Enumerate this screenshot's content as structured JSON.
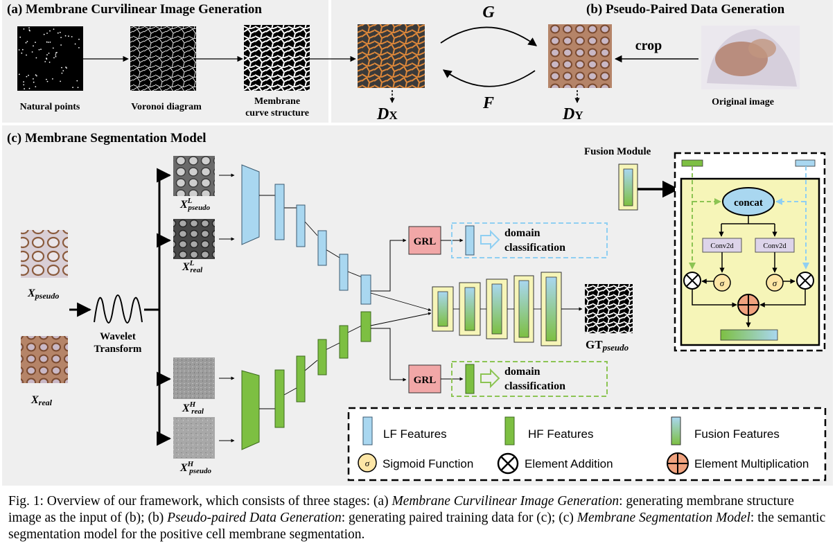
{
  "panel_a": {
    "title": "(a)  Membrane Curvilinear Image Generation",
    "natural_points": "Natural points",
    "voronoi": "Voronoi diagram",
    "membrane_line1": "Membrane",
    "membrane_line2": "curve structure"
  },
  "panel_b": {
    "title": "(b) Pseudo-Paired Data Generation",
    "g_label": "G",
    "f_label": "F",
    "dx_main": "D",
    "dx_sub": "X",
    "dy_main": "D",
    "dy_sub": "Y",
    "crop": "crop",
    "original": "Original image"
  },
  "panel_c": {
    "title": "(c) Membrane Segmentation Model",
    "x_pseudo": "X",
    "x_pseudo_sub": "pseudo",
    "x_real": "X",
    "x_real_sub": "real",
    "wavelet_line1": "Wavelet",
    "wavelet_line2": "Transform",
    "xl_pseudo_main": "X",
    "xl_pseudo_sup": "L",
    "xl_pseudo_sub": "pseudo",
    "xl_real_main": "X",
    "xl_real_sup": "L",
    "xl_real_sub": "real",
    "xh_real_main": "X",
    "xh_real_sup": "H",
    "xh_real_sub": "real",
    "xh_pseudo_main": "X",
    "xh_pseudo_sup": "H",
    "xh_pseudo_sub": "pseudo",
    "grl": "GRL",
    "domain_line1": "domain",
    "domain_line2": "classification",
    "gt_main": "GT",
    "gt_sub": "pseudo",
    "fusion_module": "Fusion Module",
    "concat": "concat",
    "conv2d": "Conv2d",
    "sigma": "σ"
  },
  "legend": {
    "lf": "LF Features",
    "hf": "HF Features",
    "fusion": "Fusion Features",
    "sigmoid": "Sigmoid Function",
    "addition": "Element Addition",
    "multiplication": "Element Multiplication"
  },
  "caption": {
    "p1": "Fig. 1: Overview of our framework, which consists of three stages: (a) ",
    "i1": "Membrane Curvilinear Image Generation",
    "p2": ": generating membrane structure image as the input of (b); (b) ",
    "i2": "Pseudo-paired Data Generation",
    "p3": ": generating paired training data for (c); (c) ",
    "i3": "Membrane Segmentation Model",
    "p4": ": the semantic segmentation model for the positive cell membrane segmentation."
  },
  "colors": {
    "panel_bg": "#efefef",
    "lf_blue": "#a9d7f0",
    "hf_green": "#7dbf42",
    "fusion_yellow": "#f6f5b8",
    "grl_pink": "#f1a7a7",
    "conv_purple": "#ddd4ea",
    "sigmoid_fill": "#fde6a6",
    "mult_orange": "#f0a27e",
    "dash_blue": "#8fcff2",
    "dash_green": "#8cc453"
  }
}
